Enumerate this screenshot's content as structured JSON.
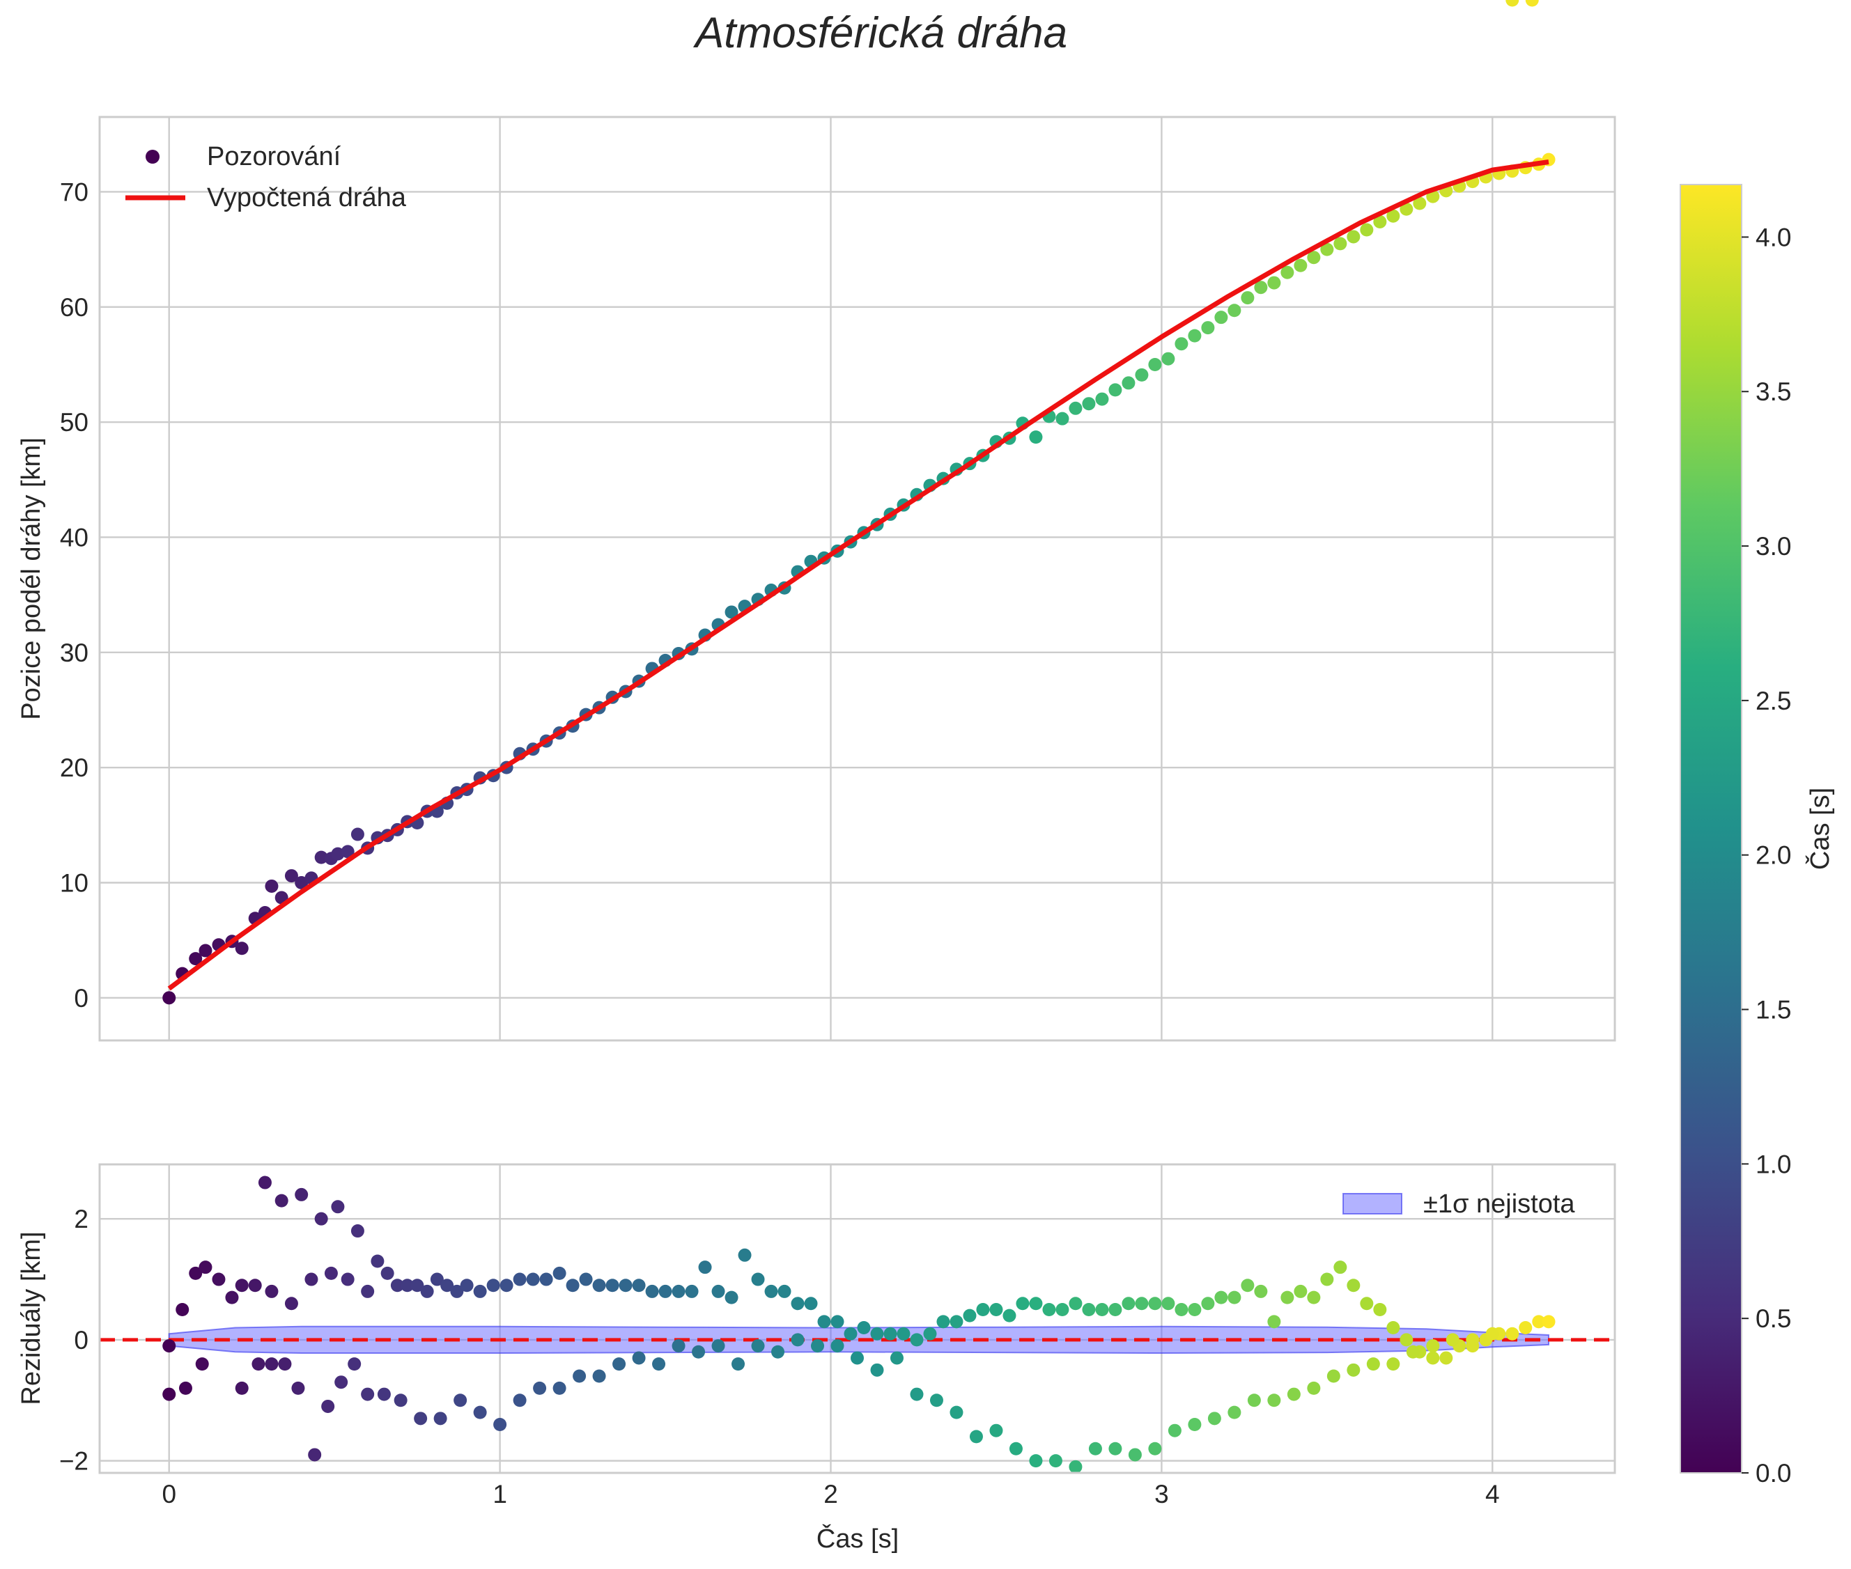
{
  "chart_data": [
    {
      "type": "scatter",
      "title": "Atmosférická dráha",
      "xlabel": "",
      "ylabel": "Pozice podél dráhy [km]",
      "xlim": [
        -0.21,
        4.37
      ],
      "ylim": [
        -3.7,
        76.5
      ],
      "xticks": [
        0,
        1,
        2,
        3,
        4
      ],
      "yticks": [
        0,
        10,
        20,
        30,
        40,
        50,
        60,
        70
      ],
      "xtick_labels": [
        "",
        "",
        "",
        "",
        ""
      ],
      "ytick_labels": [
        "0",
        "10",
        "20",
        "30",
        "40",
        "50",
        "60",
        "70"
      ],
      "grid": true,
      "legend": {
        "placement": "top-left",
        "observations": "Pozorování",
        "model": "Vypočtená dráha"
      },
      "model_curve": {
        "name": "Vypočtená dráha",
        "color": "#ee1111",
        "x": [
          0,
          0.2,
          0.4,
          0.6,
          0.8,
          1.0,
          1.2,
          1.4,
          1.6,
          1.8,
          2.0,
          2.2,
          2.4,
          2.6,
          2.8,
          3.0,
          3.2,
          3.4,
          3.6,
          3.8,
          4.0,
          4.17
        ],
        "y": [
          0.8,
          5.1,
          9.2,
          13.1,
          16.6,
          19.8,
          23.4,
          27.0,
          30.8,
          34.6,
          38.5,
          42.3,
          46.0,
          49.9,
          53.7,
          57.4,
          60.9,
          64.2,
          67.3,
          70.0,
          71.9,
          72.6
        ]
      },
      "series_observed": {
        "name": "Pozorování",
        "colormap": "viridis",
        "t": [
          0.0,
          0.04,
          0.08,
          0.11,
          0.15,
          0.19,
          0.22,
          0.26,
          0.29,
          0.31,
          0.34,
          0.37,
          0.4,
          0.43,
          0.46,
          0.49,
          0.51,
          0.54,
          0.57,
          0.6,
          0.63,
          0.66,
          0.69,
          0.72,
          0.75,
          0.78,
          0.81,
          0.84,
          0.87,
          0.9,
          0.94,
          0.98,
          1.02,
          1.06,
          1.1,
          1.14,
          1.18,
          1.22,
          1.26,
          1.3,
          1.34,
          1.38,
          1.42,
          1.46,
          1.5,
          1.54,
          1.58,
          1.62,
          1.66,
          1.7,
          1.74,
          1.78,
          1.82,
          1.86,
          1.9,
          1.94,
          1.98,
          2.02,
          2.06,
          2.1,
          2.14,
          2.18,
          2.22,
          2.26,
          2.3,
          2.34,
          2.38,
          2.42,
          2.46,
          2.5,
          2.54,
          2.58,
          2.62,
          2.66,
          2.7,
          2.74,
          2.78,
          2.82,
          2.86,
          2.9,
          2.94,
          2.98,
          3.02,
          3.06,
          3.1,
          3.14,
          3.18,
          3.22,
          3.26,
          3.3,
          3.34,
          3.38,
          3.42,
          3.46,
          3.5,
          3.54,
          3.58,
          3.62,
          3.66,
          3.7,
          3.74,
          3.78,
          3.82,
          3.86,
          3.9,
          3.94,
          3.98,
          4.02,
          4.06,
          4.1,
          4.14,
          4.17
        ],
        "y": [
          0.0,
          2.1,
          3.4,
          4.1,
          4.6,
          4.9,
          4.3,
          6.9,
          7.4,
          9.7,
          8.7,
          10.6,
          10.0,
          10.4,
          12.2,
          12.1,
          12.5,
          12.7,
          14.2,
          13.0,
          13.9,
          14.1,
          14.6,
          15.3,
          15.2,
          16.2,
          16.2,
          16.9,
          17.8,
          18.1,
          19.1,
          19.3,
          20.0,
          21.2,
          21.6,
          22.3,
          23.0,
          23.6,
          24.6,
          25.2,
          26.1,
          26.6,
          27.5,
          28.6,
          29.3,
          29.9,
          30.3,
          31.5,
          32.4,
          33.5,
          34.0,
          34.6,
          35.4,
          35.6,
          37.0,
          37.9,
          38.2,
          38.8,
          39.6,
          40.4,
          41.1,
          42.0,
          42.8,
          43.7,
          44.5,
          45.1,
          45.9,
          46.4,
          47.1,
          48.3,
          48.6,
          49.9,
          48.7,
          50.5,
          50.3,
          51.2,
          51.6,
          52.0,
          52.8,
          53.4,
          54.1,
          55.0,
          55.5,
          56.8,
          57.5,
          58.2,
          59.1,
          59.7,
          60.8,
          61.7,
          62.1,
          63.0,
          63.6,
          64.3,
          65.0,
          65.5,
          66.1,
          66.7,
          67.4,
          67.9,
          68.5,
          69.0,
          69.6,
          70.1,
          70.5,
          70.9,
          71.3,
          71.6,
          71.8,
          72.1,
          72.4,
          72.8
        ]
      }
    },
    {
      "type": "scatter",
      "title": "",
      "xlabel": "Čas [s]",
      "ylabel": "Reziduály [km]",
      "xlim": [
        -0.21,
        4.37
      ],
      "ylim": [
        -2.2,
        2.9
      ],
      "xticks": [
        0,
        1,
        2,
        3,
        4
      ],
      "yticks": [
        -2,
        0,
        2
      ],
      "xtick_labels": [
        "0",
        "1",
        "2",
        "3",
        "4"
      ],
      "ytick_labels": [
        "−2",
        "0",
        "2"
      ],
      "grid": true,
      "legend": {
        "placement": "top-right",
        "band": "±1σ nejistota"
      },
      "reference_line": {
        "y": 0,
        "color": "#ee1111",
        "style": "dashed"
      },
      "uncertainty_band": {
        "name": "±1σ nejistota",
        "color": "#6666ff",
        "x": [
          0,
          0.2,
          0.4,
          0.6,
          1.0,
          1.5,
          2.0,
          2.5,
          3.0,
          3.5,
          3.8,
          4.0,
          4.17
        ],
        "lower": [
          -0.1,
          -0.2,
          -0.22,
          -0.22,
          -0.22,
          -0.21,
          -0.2,
          -0.21,
          -0.22,
          -0.21,
          -0.18,
          -0.12,
          -0.08
        ],
        "upper": [
          0.1,
          0.2,
          0.22,
          0.22,
          0.22,
          0.21,
          0.2,
          0.21,
          0.22,
          0.21,
          0.18,
          0.12,
          0.08
        ]
      },
      "series_residuals": {
        "name": "Reziduály",
        "colormap": "viridis",
        "t": [
          0.0,
          0.04,
          0.08,
          0.11,
          0.15,
          0.19,
          0.22,
          0.26,
          0.29,
          0.31,
          0.34,
          0.37,
          0.4,
          0.43,
          0.46,
          0.49,
          0.51,
          0.54,
          0.57,
          0.6,
          0.63,
          0.66,
          0.69,
          0.72,
          0.75,
          0.78,
          0.81,
          0.84,
          0.87,
          0.9,
          0.94,
          0.98,
          1.02,
          1.06,
          1.1,
          1.14,
          1.18,
          1.22,
          1.26,
          1.3,
          1.34,
          1.38,
          1.42,
          1.46,
          1.5,
          1.54,
          1.58,
          1.62,
          1.66,
          1.7,
          1.74,
          1.78,
          1.82,
          1.86,
          1.9,
          1.94,
          1.98,
          2.02,
          2.06,
          2.1,
          2.14,
          2.18,
          2.22,
          2.26,
          2.3,
          2.34,
          2.38,
          2.42,
          2.46,
          2.5,
          2.54,
          2.58,
          2.62,
          2.66,
          2.7,
          2.74,
          2.78,
          2.82,
          2.86,
          2.9,
          2.94,
          2.98,
          3.02,
          3.06,
          3.1,
          3.14,
          3.18,
          3.22,
          3.26,
          3.3,
          3.34,
          3.38,
          3.42,
          3.46,
          3.5,
          3.54,
          3.58,
          3.62,
          3.66,
          3.7,
          3.74,
          3.78,
          3.82,
          3.86,
          3.9,
          3.94,
          3.98,
          4.02,
          4.06,
          4.1,
          4.14,
          4.17,
          0.0,
          0.05,
          0.1,
          0.22,
          0.27,
          0.31,
          0.35,
          0.39,
          0.44,
          0.48,
          0.52,
          0.56,
          0.6,
          0.65,
          0.7,
          0.76,
          0.82,
          0.88,
          0.94,
          1.0,
          1.06,
          1.12,
          1.18,
          1.24,
          1.3,
          1.36,
          1.42,
          1.48,
          1.54,
          1.6,
          1.66,
          1.72,
          1.78,
          1.84,
          1.9,
          1.96,
          2.02,
          2.08,
          2.14,
          2.2,
          2.26,
          2.32,
          2.38,
          2.44,
          2.5,
          2.56,
          2.62,
          2.68,
          2.74,
          2.8,
          2.86,
          2.92,
          2.98,
          3.04,
          3.1,
          3.16,
          3.22,
          3.28,
          3.34,
          3.4,
          3.46,
          3.52,
          3.58,
          3.64,
          3.7,
          3.76,
          3.82,
          3.88,
          3.94,
          4.0,
          4.06,
          4.12
        ],
        "r": [
          -0.9,
          0.5,
          1.1,
          1.2,
          1.0,
          0.7,
          0.9,
          0.9,
          2.6,
          0.8,
          2.3,
          0.6,
          2.4,
          1.0,
          2.0,
          1.1,
          2.2,
          1.0,
          1.8,
          0.8,
          1.3,
          1.1,
          0.9,
          0.9,
          0.9,
          0.8,
          1.0,
          0.9,
          0.8,
          0.9,
          0.8,
          0.9,
          0.9,
          1.0,
          1.0,
          1.0,
          1.1,
          0.9,
          1.0,
          0.9,
          0.9,
          0.9,
          0.9,
          0.8,
          0.8,
          0.8,
          0.8,
          1.2,
          0.8,
          0.7,
          1.4,
          1.0,
          0.8,
          0.8,
          0.6,
          0.6,
          0.3,
          0.3,
          0.1,
          0.2,
          0.1,
          0.1,
          0.1,
          0.0,
          0.1,
          0.3,
          0.3,
          0.4,
          0.5,
          0.5,
          0.4,
          0.6,
          0.6,
          0.5,
          0.5,
          0.6,
          0.5,
          0.5,
          0.5,
          0.6,
          0.6,
          0.6,
          0.6,
          0.5,
          0.5,
          0.6,
          0.7,
          0.7,
          0.9,
          0.8,
          0.3,
          0.7,
          0.8,
          0.7,
          1.0,
          1.2,
          0.9,
          0.6,
          0.5,
          0.2,
          0.0,
          -0.2,
          -0.3,
          -0.3,
          -0.1,
          -0.1,
          0.0,
          0.1,
          0.1,
          0.2,
          0.3,
          0.3,
          -0.1,
          -0.8,
          -0.4,
          -0.8,
          -0.4,
          -0.4,
          -0.4,
          -0.8,
          -1.9,
          -1.1,
          -0.7,
          -0.4,
          -0.9,
          -0.9,
          -1.0,
          -1.3,
          -1.3,
          -1.0,
          -1.2,
          -1.4,
          -1.0,
          -0.8,
          -0.8,
          -0.6,
          -0.6,
          -0.4,
          -0.3,
          -0.4,
          -0.1,
          -0.2,
          -0.1,
          -0.4,
          -0.1,
          -0.2,
          0.0,
          -0.1,
          -0.1,
          -0.3,
          -0.5,
          -0.3,
          -0.9,
          -1.0,
          -1.2,
          -1.6,
          -1.5,
          -1.8,
          -2.0,
          -2.0,
          -2.1,
          -1.8,
          -1.8,
          -1.9,
          -1.8,
          -1.5,
          -1.4,
          -1.3,
          -1.2,
          -1.0,
          -1.0,
          -0.9,
          -0.8,
          -0.6,
          -0.5,
          -0.4,
          -0.4,
          -0.2,
          -0.1,
          0.0,
          0.0,
          0.1
        ]
      }
    }
  ],
  "colorbar": {
    "label": "Čas [s]",
    "colormap": "viridis",
    "range": [
      0,
      4.17
    ],
    "ticks": [
      0,
      0.5,
      1.0,
      1.5,
      2.0,
      2.5,
      3.0,
      3.5,
      4.0
    ],
    "tick_labels": [
      "0.0",
      "0.5",
      "1.0",
      "1.5",
      "2.0",
      "2.5",
      "3.0",
      "3.5",
      "4.0"
    ]
  }
}
